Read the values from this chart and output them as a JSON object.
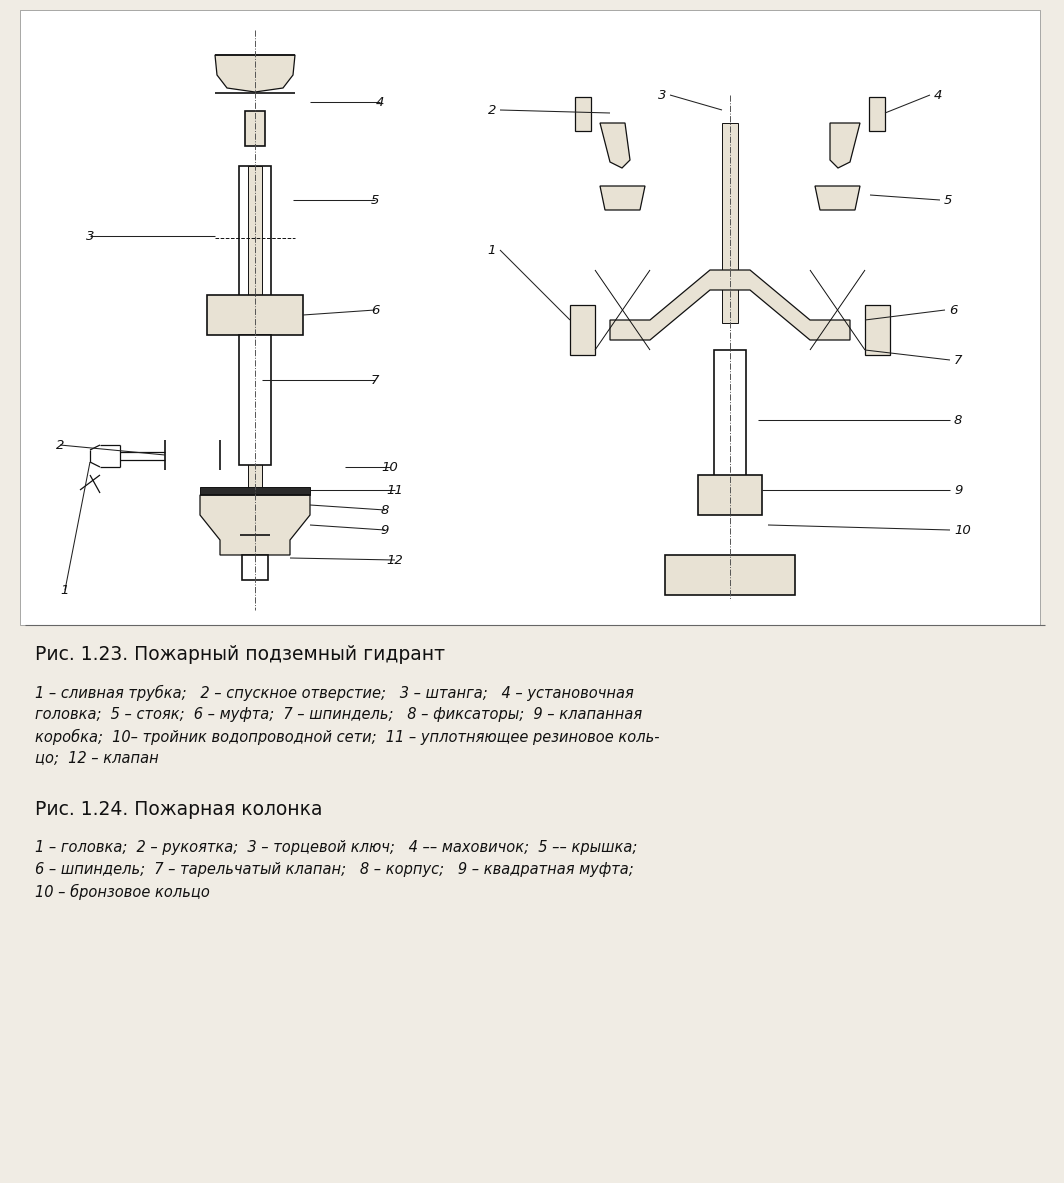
{
  "background_color": "#f0ece4",
  "title1": "Рис. 1.23. Пожарный подземный гидрант",
  "title2": "Рис. 1.24. Пожарная колонка",
  "caption1_line1": "1 – сливная трубка;   2 – спускное отверстие;   3 – штанга;   4 – установочная",
  "caption1_line2": "головка;  5 – стояк;  6 – муфта;  7 – шпиндель;   8 – фиксаторы;  9 – клапанная",
  "caption1_line3": "коробка;  10– тройник водопроводной сети;  11 – уплотняющее резиновое коль-",
  "caption1_line4": "цо;  12 – клапан",
  "caption2_line1": "1 – головка;  2 – рукоятка;  3 – торцевой ключ;   4 –– маховичок;  5 –– крышка;",
  "caption2_line2": "6 – шпиндель;  7 – тарельчатый клапан;   8 – корпус;   9 – квадратная муфта;",
  "caption2_line3": "10 – бронзовое кольцо",
  "fig_width": 10.64,
  "fig_height": 11.83,
  "hatch_color": "#c8bfaa",
  "line_color": "#111111",
  "white": "#ffffff",
  "light_fill": "#e8e2d4",
  "dark_fill": "#2a2a2a"
}
